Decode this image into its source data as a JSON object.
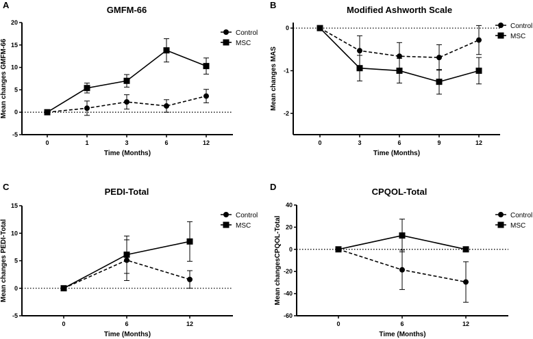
{
  "chart_data": [
    {
      "panel": "A",
      "type": "line",
      "title": "GMFM-66",
      "xlabel": "Time (Months)",
      "ylabel": "Mean changes GMFM-66",
      "categories": [
        "0",
        "1",
        "3",
        "6",
        "12"
      ],
      "ylim": [
        -5,
        20
      ],
      "yticks": [
        -5,
        0,
        5,
        10,
        15,
        20
      ],
      "reference_line": 0,
      "legend_position": "top-right",
      "series": [
        {
          "name": "Control",
          "marker": "circle",
          "line": "dashed",
          "values": [
            0,
            0.9,
            2.3,
            1.4,
            3.6
          ],
          "error": [
            0,
            1.6,
            1.6,
            1.4,
            1.5
          ]
        },
        {
          "name": "MSC",
          "marker": "square",
          "line": "solid",
          "values": [
            0,
            5.4,
            7.0,
            13.8,
            10.3
          ],
          "error": [
            0,
            1.1,
            1.4,
            2.6,
            1.8
          ]
        }
      ]
    },
    {
      "panel": "B",
      "type": "line",
      "title": "Modified Ashworth Scale",
      "xlabel": "Time (Months)",
      "ylabel": "Mean changes MAS",
      "categories": [
        "0",
        "3",
        "6",
        "9",
        "12"
      ],
      "ylim": [
        -2.5,
        0.13
      ],
      "yticks": [
        -2,
        -1,
        0
      ],
      "reference_line": 0,
      "legend_position": "top-right",
      "series": [
        {
          "name": "Control",
          "marker": "circle",
          "line": "dashed",
          "values": [
            0,
            -0.53,
            -0.66,
            -0.69,
            -0.28
          ],
          "error": [
            0,
            0.35,
            0.32,
            0.3,
            0.34
          ]
        },
        {
          "name": "MSC",
          "marker": "square",
          "line": "solid",
          "values": [
            0,
            -0.94,
            -1.0,
            -1.26,
            -1.0
          ],
          "error": [
            0,
            0.3,
            0.29,
            0.29,
            0.31
          ]
        }
      ]
    },
    {
      "panel": "C",
      "type": "line",
      "title": "PEDI-Total",
      "xlabel": "Time (Months)",
      "ylabel": "Mean changes PEDI-Total",
      "categories": [
        "0",
        "6",
        "12"
      ],
      "ylim": [
        -5,
        15
      ],
      "yticks": [
        -5,
        0,
        5,
        10,
        15
      ],
      "reference_line": 0,
      "legend_position": "top-right",
      "series": [
        {
          "name": "Control",
          "marker": "circle",
          "line": "dashed",
          "values": [
            0,
            5.1,
            1.6
          ],
          "error": [
            0,
            3.7,
            1.6
          ]
        },
        {
          "name": "MSC",
          "marker": "square",
          "line": "solid",
          "values": [
            0,
            6.1,
            8.5
          ],
          "error": [
            0,
            3.4,
            3.6
          ]
        }
      ]
    },
    {
      "panel": "D",
      "type": "line",
      "title": "CPQOL-Total",
      "xlabel": "Time (Months)",
      "ylabel": "Mean changesCPQOL-Total",
      "categories": [
        "0",
        "6",
        "12"
      ],
      "ylim": [
        -60,
        40
      ],
      "yticks": [
        -60,
        -40,
        -20,
        0,
        20,
        40
      ],
      "reference_line": 0,
      "legend_position": "top-right",
      "series": [
        {
          "name": "Control",
          "marker": "circle",
          "line": "dashed",
          "values": [
            0,
            -18.5,
            -29.5
          ],
          "error": [
            0,
            17.8,
            18.3
          ]
        },
        {
          "name": "MSC",
          "marker": "square",
          "line": "solid",
          "values": [
            0,
            12.5,
            0
          ],
          "error": [
            0,
            14.8,
            0
          ]
        }
      ]
    }
  ]
}
